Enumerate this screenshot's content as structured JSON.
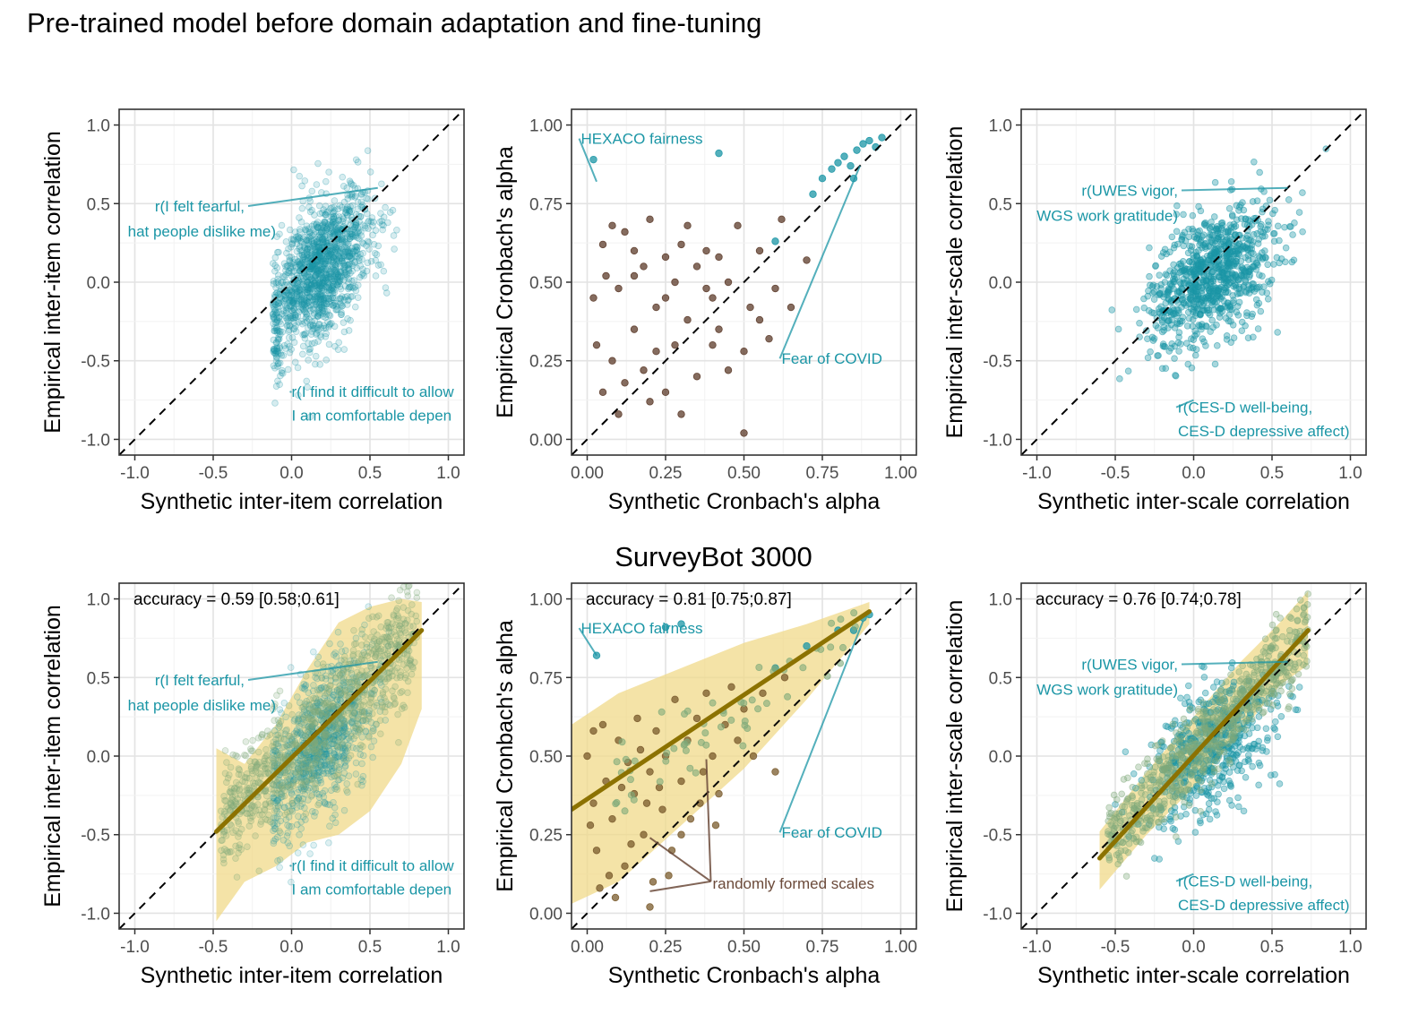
{
  "figure": {
    "title": "Pre-trained model before domain adaptation and fine-tuning",
    "row2_title": "SurveyBot 3000"
  },
  "colors": {
    "points_teal": "#1b96a6",
    "points_brown": "#5c3b2a",
    "points_olive": "#7faa7a",
    "fit_line": "#8c7200",
    "ribbon": "#f0d98a",
    "annotation_teal": "#1b96a6",
    "annotation_brown": "#6b4a3a",
    "diagonal": "#000000"
  },
  "chart_data": [
    {
      "id": "r1c1",
      "type": "scatter",
      "title": "",
      "xlabel": "Synthetic inter-item correlation",
      "ylabel": "Empirical inter-item correlation",
      "xlim": [
        -1.1,
        1.1
      ],
      "ylim": [
        -1.1,
        1.1
      ],
      "x_ticks": [
        -1.0,
        -0.5,
        0.0,
        0.5,
        1.0
      ],
      "x_tick_labels": [
        "-1.0",
        "-0.5",
        "0.0",
        "0.5",
        "1.0"
      ],
      "y_ticks": [
        -1.0,
        -0.5,
        0.0,
        0.5,
        1.0
      ],
      "y_tick_labels": [
        "-1.0",
        "-0.5",
        "0.0",
        "0.5",
        "1.0"
      ],
      "grid": true,
      "reference_line": "identity",
      "cloud": {
        "x_range": [
          -0.1,
          0.85
        ],
        "y_range": [
          -0.6,
          0.85
        ],
        "center": [
          0.2,
          0.1
        ]
      },
      "annotations": [
        {
          "text": "r(I felt fearful,",
          "x": -0.3,
          "y": 0.45,
          "anchor": "end",
          "target": [
            0.55,
            0.6
          ]
        },
        {
          "text": "hat people dislike me)",
          "x": -0.1,
          "y": 0.29,
          "anchor": "end"
        },
        {
          "text": "r(I find it difficult to allow",
          "x": 0.0,
          "y": -0.73,
          "anchor": "start",
          "target": [
            0.0,
            -0.7
          ]
        },
        {
          "text": "I am comfortable depen",
          "x": 0.0,
          "y": -0.88,
          "anchor": "start"
        }
      ]
    },
    {
      "id": "r1c2",
      "type": "scatter",
      "title": "",
      "xlabel": "Synthetic Cronbach's alpha",
      "ylabel": "Empirical Cronbach's alpha",
      "xlim": [
        -0.05,
        1.05
      ],
      "ylim": [
        -0.05,
        1.05
      ],
      "x_ticks": [
        0.0,
        0.25,
        0.5,
        0.75,
        1.0
      ],
      "x_tick_labels": [
        "0.00",
        "0.25",
        "0.50",
        "0.75",
        "1.00"
      ],
      "y_ticks": [
        0.0,
        0.25,
        0.5,
        0.75,
        1.0
      ],
      "y_tick_labels": [
        "0.00",
        "0.25",
        "0.50",
        "0.75",
        "1.00"
      ],
      "grid": true,
      "reference_line": "identity",
      "points_brown": [
        [
          0.02,
          0.45
        ],
        [
          0.05,
          0.62
        ],
        [
          0.08,
          0.68
        ],
        [
          0.1,
          0.48
        ],
        [
          0.12,
          0.66
        ],
        [
          0.15,
          0.6
        ],
        [
          0.18,
          0.55
        ],
        [
          0.2,
          0.7
        ],
        [
          0.22,
          0.42
        ],
        [
          0.25,
          0.58
        ],
        [
          0.28,
          0.5
        ],
        [
          0.3,
          0.62
        ],
        [
          0.32,
          0.38
        ],
        [
          0.35,
          0.55
        ],
        [
          0.38,
          0.6
        ],
        [
          0.4,
          0.45
        ],
        [
          0.42,
          0.35
        ],
        [
          0.45,
          0.5
        ],
        [
          0.48,
          0.68
        ],
        [
          0.5,
          0.28
        ],
        [
          0.52,
          0.42
        ],
        [
          0.55,
          0.6
        ],
        [
          0.58,
          0.32
        ],
        [
          0.6,
          0.48
        ],
        [
          0.62,
          0.7
        ],
        [
          0.08,
          0.25
        ],
        [
          0.12,
          0.18
        ],
        [
          0.15,
          0.35
        ],
        [
          0.18,
          0.22
        ],
        [
          0.2,
          0.12
        ],
        [
          0.22,
          0.28
        ],
        [
          0.25,
          0.15
        ],
        [
          0.28,
          0.3
        ],
        [
          0.3,
          0.08
        ],
        [
          0.35,
          0.2
        ],
        [
          0.05,
          0.15
        ],
        [
          0.03,
          0.3
        ],
        [
          0.1,
          0.08
        ],
        [
          0.4,
          0.3
        ],
        [
          0.45,
          0.22
        ],
        [
          0.5,
          0.02
        ],
        [
          0.55,
          0.38
        ],
        [
          0.65,
          0.42
        ],
        [
          0.7,
          0.57
        ],
        [
          0.25,
          0.45
        ],
        [
          0.15,
          0.52
        ],
        [
          0.32,
          0.68
        ],
        [
          0.42,
          0.58
        ],
        [
          0.38,
          0.48
        ],
        [
          0.06,
          0.52
        ]
      ],
      "points_teal": [
        [
          0.02,
          0.89
        ],
        [
          0.42,
          0.91
        ],
        [
          0.6,
          0.63
        ],
        [
          0.72,
          0.78
        ],
        [
          0.75,
          0.83
        ],
        [
          0.78,
          0.86
        ],
        [
          0.8,
          0.88
        ],
        [
          0.82,
          0.9
        ],
        [
          0.84,
          0.87
        ],
        [
          0.86,
          0.92
        ],
        [
          0.88,
          0.94
        ],
        [
          0.9,
          0.95
        ],
        [
          0.92,
          0.93
        ],
        [
          0.94,
          0.96
        ],
        [
          0.85,
          0.83
        ]
      ],
      "annotations": [
        {
          "text": "HEXACO fairness",
          "x": -0.02,
          "y": 0.94,
          "anchor": "start",
          "target": [
            0.03,
            0.82
          ]
        },
        {
          "text": "Fear of COVID",
          "x": 0.62,
          "y": 0.24,
          "anchor": "start",
          "target": [
            0.87,
            0.87
          ]
        }
      ]
    },
    {
      "id": "r1c3",
      "type": "scatter",
      "title": "",
      "xlabel": "Synthetic inter-scale correlation",
      "ylabel": "Empirical inter-scale correlation",
      "xlim": [
        -1.1,
        1.1
      ],
      "ylim": [
        -1.1,
        1.1
      ],
      "x_ticks": [
        -1.0,
        -0.5,
        0.0,
        0.5,
        1.0
      ],
      "x_tick_labels": [
        "-1.0",
        "-0.5",
        "0.0",
        "0.5",
        "1.0"
      ],
      "y_ticks": [
        -1.0,
        -0.5,
        0.0,
        0.5,
        1.0
      ],
      "y_tick_labels": [
        "-1.0",
        "-0.5",
        "0.0",
        "0.5",
        "1.0"
      ],
      "grid": true,
      "reference_line": "identity",
      "cloud": {
        "x_range": [
          -0.45,
          0.8
        ],
        "y_range": [
          -0.6,
          0.85
        ],
        "center": [
          0.12,
          0.05
        ]
      },
      "annotations": [
        {
          "text": "r(UWES vigor,",
          "x": -0.1,
          "y": 0.55,
          "anchor": "end",
          "target": [
            0.6,
            0.6
          ]
        },
        {
          "text": "WGS work gratitude)",
          "x": -0.1,
          "y": 0.39,
          "anchor": "end"
        },
        {
          "text": "r(CES-D well-being,",
          "x": -0.1,
          "y": -0.83,
          "anchor": "start",
          "target": [
            0.0,
            -0.75
          ]
        },
        {
          "text": "CES-D depressive affect)",
          "x": -0.1,
          "y": -0.98,
          "anchor": "start"
        }
      ]
    },
    {
      "id": "r2c1",
      "type": "scatter",
      "title": "",
      "xlabel": "Synthetic inter-item correlation",
      "ylabel": "Empirical inter-item correlation",
      "xlim": [
        -1.1,
        1.1
      ],
      "ylim": [
        -1.1,
        1.1
      ],
      "x_ticks": [
        -1.0,
        -0.5,
        0.0,
        0.5,
        1.0
      ],
      "x_tick_labels": [
        "-1.0",
        "-0.5",
        "0.0",
        "0.5",
        "1.0"
      ],
      "y_ticks": [
        -1.0,
        -0.5,
        0.0,
        0.5,
        1.0
      ],
      "y_tick_labels": [
        "-1.0",
        "-0.5",
        "0.0",
        "0.5",
        "1.0"
      ],
      "grid": true,
      "reference_line": "identity",
      "accuracy_label": "accuracy = 0.59 [0.58;0.61]",
      "fit_line": {
        "x": [
          -0.48,
          0.83
        ],
        "y": [
          -0.48,
          0.8
        ]
      },
      "ribbon_upper": [
        [
          -0.48,
          0.05
        ],
        [
          -0.3,
          -0.05
        ],
        [
          -0.1,
          0.2
        ],
        [
          0.1,
          0.55
        ],
        [
          0.3,
          0.85
        ],
        [
          0.5,
          0.95
        ],
        [
          0.7,
          1.0
        ],
        [
          0.83,
          0.98
        ]
      ],
      "ribbon_lower": [
        [
          -0.48,
          -1.05
        ],
        [
          -0.3,
          -0.8
        ],
        [
          -0.1,
          -0.7
        ],
        [
          0.1,
          -0.55
        ],
        [
          0.3,
          -0.5
        ],
        [
          0.5,
          -0.35
        ],
        [
          0.7,
          -0.05
        ],
        [
          0.83,
          0.3
        ]
      ],
      "annotations": [
        {
          "text": "r(I felt fearful,",
          "x": -0.3,
          "y": 0.45,
          "anchor": "end",
          "target": [
            0.55,
            0.6
          ]
        },
        {
          "text": "hat people dislike me)",
          "x": -0.1,
          "y": 0.29,
          "anchor": "end"
        },
        {
          "text": "r(I find it difficult to allow",
          "x": 0.0,
          "y": -0.73,
          "anchor": "start",
          "target": [
            0.0,
            -0.7
          ]
        },
        {
          "text": "I am comfortable depen",
          "x": 0.0,
          "y": -0.88,
          "anchor": "start"
        }
      ]
    },
    {
      "id": "r2c2",
      "type": "scatter",
      "title": "",
      "xlabel": "Synthetic Cronbach's alpha",
      "ylabel": "Empirical Cronbach's alpha",
      "xlim": [
        -0.05,
        1.05
      ],
      "ylim": [
        -0.05,
        1.05
      ],
      "x_ticks": [
        0.0,
        0.25,
        0.5,
        0.75,
        1.0
      ],
      "x_tick_labels": [
        "0.00",
        "0.25",
        "0.50",
        "0.75",
        "1.00"
      ],
      "y_ticks": [
        0.0,
        0.25,
        0.5,
        0.75,
        1.0
      ],
      "y_tick_labels": [
        "0.00",
        "0.25",
        "0.50",
        "0.75",
        "1.00"
      ],
      "grid": true,
      "reference_line": "identity",
      "accuracy_label": "accuracy = 0.81 [0.75;0.87]",
      "fit_line": {
        "x": [
          -0.05,
          0.9
        ],
        "y": [
          0.33,
          0.96
        ]
      },
      "ribbon_upper": [
        [
          -0.05,
          0.6
        ],
        [
          0.1,
          0.7
        ],
        [
          0.3,
          0.78
        ],
        [
          0.5,
          0.86
        ],
        [
          0.7,
          0.92
        ],
        [
          0.9,
          0.99
        ]
      ],
      "ribbon_lower": [
        [
          -0.05,
          0.03
        ],
        [
          0.1,
          0.1
        ],
        [
          0.3,
          0.28
        ],
        [
          0.5,
          0.46
        ],
        [
          0.7,
          0.68
        ],
        [
          0.9,
          0.92
        ]
      ],
      "points_brown": [
        [
          0.0,
          0.5
        ],
        [
          0.02,
          0.35
        ],
        [
          0.03,
          0.2
        ],
        [
          0.05,
          0.6
        ],
        [
          0.06,
          0.42
        ],
        [
          0.08,
          0.3
        ],
        [
          0.1,
          0.55
        ],
        [
          0.12,
          0.15
        ],
        [
          0.13,
          0.48
        ],
        [
          0.15,
          0.38
        ],
        [
          0.16,
          0.62
        ],
        [
          0.18,
          0.25
        ],
        [
          0.2,
          0.45
        ],
        [
          0.21,
          0.1
        ],
        [
          0.22,
          0.58
        ],
        [
          0.24,
          0.33
        ],
        [
          0.25,
          0.5
        ],
        [
          0.27,
          0.2
        ],
        [
          0.28,
          0.68
        ],
        [
          0.3,
          0.42
        ],
        [
          0.32,
          0.55
        ],
        [
          0.33,
          0.3
        ],
        [
          0.35,
          0.62
        ],
        [
          0.37,
          0.45
        ],
        [
          0.38,
          0.7
        ],
        [
          0.4,
          0.5
        ],
        [
          0.42,
          0.38
        ],
        [
          0.44,
          0.6
        ],
        [
          0.46,
          0.72
        ],
        [
          0.48,
          0.55
        ],
        [
          0.5,
          0.65
        ],
        [
          0.53,
          0.5
        ],
        [
          0.56,
          0.7
        ],
        [
          0.6,
          0.45
        ],
        [
          0.63,
          0.75
        ],
        [
          0.04,
          0.08
        ],
        [
          0.09,
          0.05
        ],
        [
          0.2,
          0.02
        ],
        [
          0.26,
          0.12
        ],
        [
          0.14,
          0.22
        ],
        [
          0.07,
          0.12
        ],
        [
          0.3,
          0.25
        ],
        [
          0.19,
          0.35
        ],
        [
          0.11,
          0.4
        ],
        [
          0.02,
          0.58
        ],
        [
          0.01,
          0.28
        ],
        [
          0.17,
          0.52
        ],
        [
          0.23,
          0.4
        ],
        [
          0.36,
          0.35
        ],
        [
          0.41,
          0.28
        ]
      ],
      "points_teal": [
        [
          0.03,
          0.82
        ],
        [
          0.25,
          0.91
        ],
        [
          0.3,
          0.92
        ],
        [
          0.6,
          0.78
        ],
        [
          0.7,
          0.85
        ],
        [
          0.8,
          0.9
        ],
        [
          0.88,
          0.94
        ],
        [
          0.9,
          0.95
        ],
        [
          0.85,
          0.9
        ]
      ],
      "annotations": [
        {
          "text": "HEXACO fairness",
          "x": -0.02,
          "y": 0.89,
          "anchor": "start",
          "target": [
            0.03,
            0.82
          ]
        },
        {
          "text": "Fear of COVID",
          "x": 0.62,
          "y": 0.24,
          "anchor": "start",
          "target": [
            0.88,
            0.93
          ]
        }
      ],
      "brown_label": {
        "text": "randomly formed scales",
        "x": 0.4,
        "y": 0.09,
        "targets": [
          [
            0.2,
            0.24
          ],
          [
            0.38,
            0.49
          ],
          [
            0.2,
            0.07
          ]
        ]
      }
    },
    {
      "id": "r2c3",
      "type": "scatter",
      "title": "",
      "xlabel": "Synthetic inter-scale correlation",
      "ylabel": "Empirical inter-scale correlation",
      "xlim": [
        -1.1,
        1.1
      ],
      "ylim": [
        -1.1,
        1.1
      ],
      "x_ticks": [
        -1.0,
        -0.5,
        0.0,
        0.5,
        1.0
      ],
      "x_tick_labels": [
        "-1.0",
        "-0.5",
        "0.0",
        "0.5",
        "1.0"
      ],
      "y_ticks": [
        -1.0,
        -0.5,
        0.0,
        0.5,
        1.0
      ],
      "y_tick_labels": [
        "-1.0",
        "-0.5",
        "0.0",
        "0.5",
        "1.0"
      ],
      "grid": true,
      "reference_line": "identity",
      "accuracy_label": "accuracy = 0.76 [0.74;0.78]",
      "fit_line": {
        "x": [
          -0.6,
          0.73
        ],
        "y": [
          -0.65,
          0.8
        ]
      },
      "ribbon_upper": [
        [
          -0.6,
          -0.48
        ],
        [
          -0.3,
          -0.1
        ],
        [
          0.0,
          0.25
        ],
        [
          0.3,
          0.6
        ],
        [
          0.55,
          0.85
        ],
        [
          0.73,
          1.05
        ]
      ],
      "ribbon_lower": [
        [
          -0.6,
          -0.85
        ],
        [
          -0.3,
          -0.5
        ],
        [
          0.0,
          -0.2
        ],
        [
          0.3,
          0.15
        ],
        [
          0.55,
          0.45
        ],
        [
          0.73,
          0.58
        ]
      ],
      "annotations": [
        {
          "text": "r(UWES vigor,",
          "x": -0.1,
          "y": 0.55,
          "anchor": "end",
          "target": [
            0.6,
            0.6
          ]
        },
        {
          "text": "WGS work gratitude)",
          "x": -0.1,
          "y": 0.39,
          "anchor": "end"
        },
        {
          "text": "r(CES-D well-being,",
          "x": -0.1,
          "y": -0.83,
          "anchor": "start",
          "target": [
            0.0,
            -0.75
          ]
        },
        {
          "text": "CES-D depressive affect)",
          "x": -0.1,
          "y": -0.98,
          "anchor": "start"
        }
      ]
    }
  ]
}
